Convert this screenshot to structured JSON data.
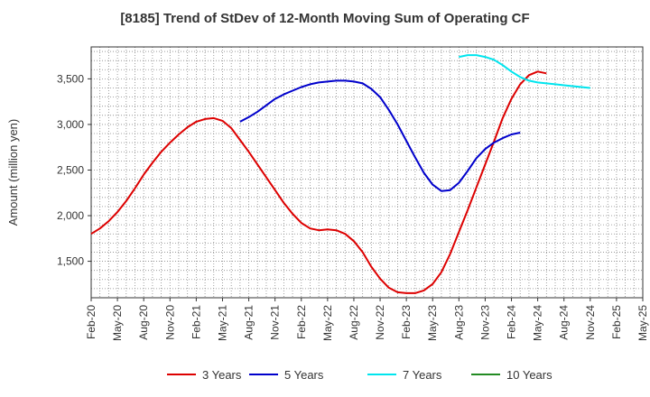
{
  "chart_data": {
    "type": "line",
    "title": "[8185]  Trend of StDev of 12-Month Moving Sum of Operating CF",
    "ylabel": "Amount (million yen)",
    "xlabel": "",
    "ylim": [
      1100,
      3850
    ],
    "yticks": [
      1500,
      2000,
      2500,
      3000,
      3500
    ],
    "ytick_labels": [
      "1,500",
      "2,000",
      "2,500",
      "3,000",
      "3,500"
    ],
    "xlim": [
      "2020-02",
      "2025-05"
    ],
    "xtick_labels": [
      "Feb-20",
      "May-20",
      "Aug-20",
      "Nov-20",
      "Feb-21",
      "May-21",
      "Aug-21",
      "Nov-21",
      "Feb-22",
      "May-22",
      "Aug-22",
      "Nov-22",
      "Feb-23",
      "May-23",
      "Aug-23",
      "Nov-23",
      "Feb-24",
      "May-24",
      "Aug-24",
      "Nov-24",
      "Feb-25",
      "May-25"
    ],
    "grid": true,
    "legend_position": "bottom",
    "series": [
      {
        "name": "3 Years",
        "color": "#dd0000",
        "points": [
          [
            "2020-02",
            1800
          ],
          [
            "2020-03",
            1860
          ],
          [
            "2020-04",
            1940
          ],
          [
            "2020-05",
            2040
          ],
          [
            "2020-06",
            2160
          ],
          [
            "2020-07",
            2300
          ],
          [
            "2020-08",
            2450
          ],
          [
            "2020-09",
            2580
          ],
          [
            "2020-10",
            2700
          ],
          [
            "2020-11",
            2800
          ],
          [
            "2020-12",
            2890
          ],
          [
            "2021-01",
            2970
          ],
          [
            "2021-02",
            3030
          ],
          [
            "2021-03",
            3060
          ],
          [
            "2021-04",
            3070
          ],
          [
            "2021-05",
            3040
          ],
          [
            "2021-06",
            2960
          ],
          [
            "2021-07",
            2830
          ],
          [
            "2021-08",
            2700
          ],
          [
            "2021-09",
            2560
          ],
          [
            "2021-10",
            2420
          ],
          [
            "2021-11",
            2280
          ],
          [
            "2021-12",
            2140
          ],
          [
            "2022-01",
            2020
          ],
          [
            "2022-02",
            1920
          ],
          [
            "2022-03",
            1860
          ],
          [
            "2022-04",
            1840
          ],
          [
            "2022-05",
            1850
          ],
          [
            "2022-06",
            1840
          ],
          [
            "2022-07",
            1800
          ],
          [
            "2022-08",
            1720
          ],
          [
            "2022-09",
            1600
          ],
          [
            "2022-10",
            1440
          ],
          [
            "2022-11",
            1310
          ],
          [
            "2022-12",
            1210
          ],
          [
            "2023-01",
            1160
          ],
          [
            "2023-02",
            1150
          ],
          [
            "2023-03",
            1150
          ],
          [
            "2023-04",
            1180
          ],
          [
            "2023-05",
            1250
          ],
          [
            "2023-06",
            1380
          ],
          [
            "2023-07",
            1580
          ],
          [
            "2023-08",
            1820
          ],
          [
            "2023-09",
            2060
          ],
          [
            "2023-10",
            2310
          ],
          [
            "2023-11",
            2560
          ],
          [
            "2023-12",
            2810
          ],
          [
            "2024-01",
            3070
          ],
          [
            "2024-02",
            3280
          ],
          [
            "2024-03",
            3440
          ],
          [
            "2024-04",
            3540
          ],
          [
            "2024-05",
            3580
          ],
          [
            "2024-06",
            3560
          ]
        ]
      },
      {
        "name": "5 Years",
        "color": "#0000cc",
        "points": [
          [
            "2021-07",
            3030
          ],
          [
            "2021-08",
            3080
          ],
          [
            "2021-09",
            3140
          ],
          [
            "2021-10",
            3210
          ],
          [
            "2021-11",
            3280
          ],
          [
            "2021-12",
            3330
          ],
          [
            "2022-01",
            3370
          ],
          [
            "2022-02",
            3410
          ],
          [
            "2022-03",
            3440
          ],
          [
            "2022-04",
            3460
          ],
          [
            "2022-05",
            3470
          ],
          [
            "2022-06",
            3480
          ],
          [
            "2022-07",
            3480
          ],
          [
            "2022-08",
            3470
          ],
          [
            "2022-09",
            3450
          ],
          [
            "2022-10",
            3390
          ],
          [
            "2022-11",
            3300
          ],
          [
            "2022-12",
            3160
          ],
          [
            "2023-01",
            3000
          ],
          [
            "2023-02",
            2820
          ],
          [
            "2023-03",
            2640
          ],
          [
            "2023-04",
            2470
          ],
          [
            "2023-05",
            2340
          ],
          [
            "2023-06",
            2270
          ],
          [
            "2023-07",
            2280
          ],
          [
            "2023-08",
            2360
          ],
          [
            "2023-09",
            2490
          ],
          [
            "2023-10",
            2630
          ],
          [
            "2023-11",
            2730
          ],
          [
            "2023-12",
            2800
          ],
          [
            "2024-01",
            2850
          ],
          [
            "2024-02",
            2890
          ],
          [
            "2024-03",
            2910
          ]
        ]
      },
      {
        "name": "7 Years",
        "color": "#00e5ee",
        "points": [
          [
            "2023-08",
            3740
          ],
          [
            "2023-09",
            3760
          ],
          [
            "2023-10",
            3760
          ],
          [
            "2023-11",
            3740
          ],
          [
            "2023-12",
            3710
          ],
          [
            "2024-01",
            3650
          ],
          [
            "2024-02",
            3580
          ],
          [
            "2024-03",
            3520
          ],
          [
            "2024-04",
            3480
          ],
          [
            "2024-05",
            3460
          ],
          [
            "2024-06",
            3450
          ],
          [
            "2024-07",
            3440
          ],
          [
            "2024-08",
            3430
          ],
          [
            "2024-09",
            3420
          ],
          [
            "2024-10",
            3410
          ],
          [
            "2024-11",
            3400
          ]
        ]
      },
      {
        "name": "10 Years",
        "color": "#228B22",
        "points": []
      }
    ]
  }
}
